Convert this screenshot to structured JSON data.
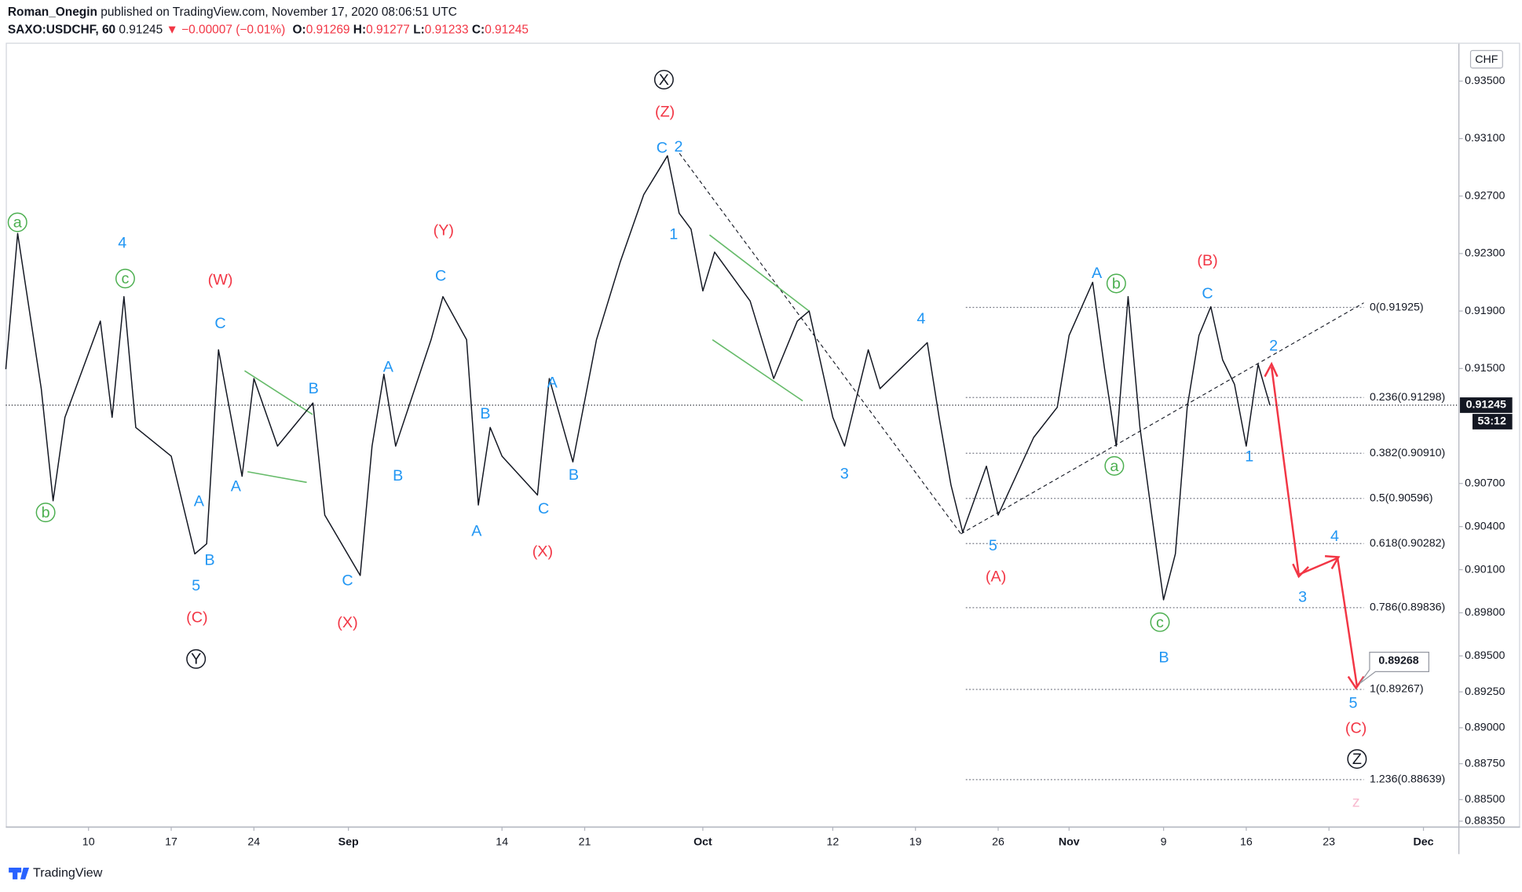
{
  "header": {
    "author": "Roman_Onegin",
    "published": "published on TradingView.com, November 17, 2020 08:06:51 UTC",
    "symbol": "SAXO:USDCHF, 60",
    "price": "0.91245",
    "change": "▼ −0.00007 (−0.01%)",
    "ohlc": [
      {
        "key": "O:",
        "value": "0.91269"
      },
      {
        "key": "H:",
        "value": "0.91277"
      },
      {
        "key": "L:",
        "value": "0.91233"
      },
      {
        "key": "C:",
        "value": "0.91245"
      }
    ]
  },
  "footer": "TradingView",
  "chart_data": {
    "type": "line",
    "color": "#131722",
    "currency": "CHF",
    "grid": false,
    "x": [
      "2020-08-03",
      "2020-08-04",
      "2020-08-06",
      "2020-08-07",
      "2020-08-08",
      "2020-08-11",
      "2020-08-12",
      "2020-08-13",
      "2020-08-14",
      "2020-08-17",
      "2020-08-19",
      "2020-08-20",
      "2020-08-21",
      "2020-08-23",
      "2020-08-24",
      "2020-08-26",
      "2020-08-29",
      "2020-08-30",
      "2020-09-02",
      "2020-09-03",
      "2020-09-04",
      "2020-09-05",
      "2020-09-08",
      "2020-09-09",
      "2020-09-11",
      "2020-09-12",
      "2020-09-13",
      "2020-09-14",
      "2020-09-17",
      "2020-09-18",
      "2020-09-20",
      "2020-09-22",
      "2020-09-24",
      "2020-09-26",
      "2020-09-28",
      "2020-09-29",
      "2020-09-30",
      "2020-10-01",
      "2020-10-02",
      "2020-10-05",
      "2020-10-07",
      "2020-10-09",
      "2020-10-10",
      "2020-10-12",
      "2020-10-13",
      "2020-10-15",
      "2020-10-16",
      "2020-10-20",
      "2020-10-21",
      "2020-10-22",
      "2020-10-23",
      "2020-10-25",
      "2020-10-26",
      "2020-10-29",
      "2020-10-31",
      "2020-11-01",
      "2020-11-03",
      "2020-11-04",
      "2020-11-05",
      "2020-11-06",
      "2020-11-07",
      "2020-11-08",
      "2020-11-09",
      "2020-11-10",
      "2020-11-11",
      "2020-11-12",
      "2020-11-13",
      "2020-11-14",
      "2020-11-15",
      "2020-11-16",
      "2020-11-17",
      "2020-11-18"
    ],
    "values": [
      0.91495,
      0.9244,
      0.9136,
      0.9058,
      0.9116,
      0.9183,
      0.9116,
      0.92,
      0.9109,
      0.9089,
      0.9021,
      0.9028,
      0.9163,
      0.9075,
      0.9143,
      0.9096,
      0.9126,
      0.9048,
      0.9006,
      0.9096,
      0.9146,
      0.9096,
      0.917,
      0.92,
      0.917,
      0.9055,
      0.9109,
      0.9089,
      0.9062,
      0.9143,
      0.9085,
      0.917,
      0.9224,
      0.9271,
      0.9298,
      0.9258,
      0.9247,
      0.9204,
      0.9231,
      0.9197,
      0.9143,
      0.9183,
      0.919,
      0.9116,
      0.9096,
      0.9163,
      0.9136,
      0.9168,
      0.9116,
      0.9069,
      0.9036,
      0.9082,
      0.9048,
      0.9102,
      0.9123,
      0.9173,
      0.921,
      0.915,
      0.9096,
      0.92,
      0.9109,
      0.9048,
      0.8989,
      0.9021,
      0.9123,
      0.9173,
      0.9193,
      0.9156,
      0.9139,
      0.9096,
      0.9153,
      0.91245
    ],
    "xlim": [
      "2020-08-03",
      "2020-12-04"
    ],
    "xticks": [
      {
        "value": "2020-08-10",
        "label": "10"
      },
      {
        "value": "2020-08-17",
        "label": "17"
      },
      {
        "value": "2020-08-24",
        "label": "24"
      },
      {
        "value": "2020-09-01",
        "label": "Sep"
      },
      {
        "value": "2020-09-14",
        "label": "14"
      },
      {
        "value": "2020-09-21",
        "label": "21"
      },
      {
        "value": "2020-10-01",
        "label": "Oct"
      },
      {
        "value": "2020-10-12",
        "label": "12"
      },
      {
        "value": "2020-10-19",
        "label": "19"
      },
      {
        "value": "2020-10-26",
        "label": "26"
      },
      {
        "value": "2020-11-01",
        "label": "Nov"
      },
      {
        "value": "2020-11-09",
        "label": "9"
      },
      {
        "value": "2020-11-16",
        "label": "16"
      },
      {
        "value": "2020-11-23",
        "label": "23"
      },
      {
        "value": "2020-12-01",
        "label": "Dec"
      }
    ],
    "ylim": [
      0.8831,
      0.9376
    ],
    "yticks": [
      {
        "value": 0.935,
        "label": "0.93500"
      },
      {
        "value": 0.931,
        "label": "0.93100"
      },
      {
        "value": 0.927,
        "label": "0.92700"
      },
      {
        "value": 0.923,
        "label": "0.92300"
      },
      {
        "value": 0.919,
        "label": "0.91900"
      },
      {
        "value": 0.915,
        "label": "0.91500"
      },
      {
        "value": 0.907,
        "label": "0.90700"
      },
      {
        "value": 0.904,
        "label": "0.90400"
      },
      {
        "value": 0.901,
        "label": "0.90100"
      },
      {
        "value": 0.898,
        "label": "0.89800"
      },
      {
        "value": 0.895,
        "label": "0.89500"
      },
      {
        "value": 0.8925,
        "label": "0.89250"
      },
      {
        "value": 0.89,
        "label": "0.89000"
      },
      {
        "value": 0.8875,
        "label": "0.88750"
      },
      {
        "value": 0.885,
        "label": "0.88500"
      },
      {
        "value": 0.8835,
        "label": "0.88350"
      }
    ],
    "last_price": 0.91245,
    "countdown": "53:12",
    "projection_label": "0.89268",
    "fib_levels": [
      {
        "value": 0.91925,
        "label": "0(0.91925)"
      },
      {
        "value": 0.91298,
        "label": "0.236(0.91298)"
      },
      {
        "value": 0.9091,
        "label": "0.382(0.90910)"
      },
      {
        "value": 0.90596,
        "label": "0.5(0.90596)"
      },
      {
        "value": 0.90282,
        "label": "0.618(0.90282)"
      },
      {
        "value": 0.89836,
        "label": "0.786(0.89836)"
      },
      {
        "value": 0.89267,
        "label": "1(0.89267)"
      },
      {
        "value": 0.88639,
        "label": "1.236(0.88639)"
      }
    ],
    "wave_labels": [
      {
        "color": "#4caf50",
        "circled": true,
        "texts": [
          "a",
          "b",
          "c",
          "b",
          "a",
          "c"
        ]
      },
      {
        "color": "#2196f3",
        "circled": false,
        "texts": [
          "4",
          "C",
          "A",
          "B",
          "5",
          "A",
          "B",
          "B",
          "A",
          "C",
          "C",
          "B",
          "A",
          "A",
          "B",
          "C",
          "C",
          "2",
          "1",
          "4",
          "3",
          "5",
          "A",
          "C",
          "1",
          "2",
          "3",
          "4",
          "5",
          "B"
        ]
      },
      {
        "color": "#f23645",
        "circled": false,
        "texts": [
          "(W)",
          "(C)",
          "(Y)",
          "(X)",
          "(X)",
          "(Z)",
          "(A)",
          "(B)",
          "(C)"
        ]
      },
      {
        "color": "#131722",
        "circled": true,
        "texts": [
          "X",
          "Y",
          "Z"
        ]
      },
      {
        "color": "#f8bbd0",
        "circled": false,
        "texts": [
          "z"
        ]
      }
    ]
  }
}
